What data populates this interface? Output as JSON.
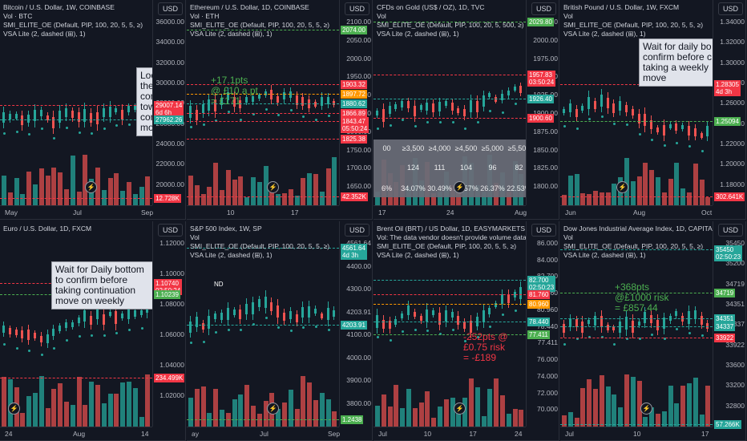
{
  "colors": {
    "bg": "#131722",
    "green": "#26a69a",
    "red": "#ef5350",
    "orange": "#ff9800",
    "greenLine": "#4caf50",
    "redLine": "#f23645"
  },
  "panes": [
    {
      "id": "btc",
      "title": "Bitcoin / U.S. Dollar, 1W, COINBASE",
      "legend2": "Vol · BTC",
      "legend3": "SMI_ELITE_OE (Default, PIP, 100, 20, 5, 5, ≥)",
      "legend4": "VSA Lite (2, dashed (⊞), 1)",
      "usd": "USD",
      "yticks": [
        "36000.00",
        "34000.00",
        "32000.00",
        "30000.00",
        "28000.00",
        "26000.00",
        "24000.00",
        "22000.00",
        "20000.00"
      ],
      "xticks": [
        "May",
        "Jul",
        "Sep"
      ],
      "labels": [
        {
          "t": "29007.14",
          "sub": "6d 6h"
        },
        {
          "t": "27962.26"
        },
        {
          "t": "12.728K"
        }
      ],
      "note": "Loo the con tow con mov"
    },
    {
      "id": "eth",
      "title": "Ethereum / U.S. Dollar, 1D, COINBASE",
      "legend2": "Vol · ETH",
      "legend3": "SMI_ELITE_OE (Default, PIP, 100, 20, 5, 5, ≥)",
      "legend4": "VSA Lite (2, dashed (⊞), 1)",
      "usd": "USD",
      "yticks": [
        "2100.00",
        "2050.00",
        "2000.00",
        "1950.00",
        "1900.00",
        "1850.00",
        "1800.00",
        "1750.00",
        "1700.00",
        "1650.00"
      ],
      "xticks": [
        "10",
        "17"
      ],
      "labels": [
        {
          "t": "2074.00"
        },
        {
          "t": "1903.32"
        },
        {
          "t": "1897.72"
        },
        {
          "t": "1880.62"
        },
        {
          "t": "1866.89"
        },
        {
          "t": "1843.47",
          "sub": "05:50:24"
        },
        {
          "t": "1825.38"
        },
        {
          "t": "42.352K"
        }
      ],
      "pnl": "+17.1pts\n@ £10 a pt\n= £171"
    },
    {
      "id": "gold",
      "title": "CFDs on Gold (US$ / OZ), 1D, TVC",
      "legend2": "Vol",
      "legend3": "SMI_ELITE_OE (Default, PIP, 100, 20, 5, 500, ≥)",
      "legend4": "VSA Lite (2, dashed (⊞), 1)",
      "usd": "USD",
      "yticks": [
        "2029.80",
        "2000.00",
        "1975.00",
        "1950.00",
        "1925.00",
        "1900.00",
        "1875.00",
        "1850.00",
        "1825.00",
        "1800.00"
      ],
      "xticks": [
        "17",
        "24",
        "Aug"
      ],
      "labels": [
        {
          "t": "2029.80"
        },
        {
          "t": "1957.83",
          "sub": "03:50:24"
        },
        {
          "t": "1926.40"
        },
        {
          "t": "1900.60"
        }
      ],
      "table": {
        "head": [
          "00",
          "≥3,500",
          "≥4,000",
          "≥4,500",
          "≥5,000",
          "≥5,500",
          "≥6,"
        ],
        "row1": [
          "",
          "124",
          "111",
          "104",
          "96",
          "82",
          "7"
        ],
        "row2": [
          "6%",
          "34.07%",
          "30.49%",
          "28.57%",
          "26.37%",
          "22.53%",
          "20."
        ]
      }
    },
    {
      "id": "gbp",
      "title": "British Pound / U.S. Dollar, 1W, FXCM",
      "legend2": "Vol",
      "legend3": "SMI_ELITE_OE (Default, PIP, 100, 20, 5, 5, ≥)",
      "legend4": "VSA Lite (2, dashed (⊞), 1)",
      "usd": "USD",
      "yticks": [
        "1.34000",
        "1.32000",
        "1.30000",
        "1.28000",
        "1.26000",
        "1.24000",
        "1.22000",
        "1.20000",
        "1.18000"
      ],
      "xticks": [
        "Jun",
        "Aug",
        "Oct"
      ],
      "labels": [
        {
          "t": "1.28305",
          "sub": "4d 3h"
        },
        {
          "t": "1.25094"
        },
        {
          "t": "302.641K"
        }
      ],
      "note": "Wait for daily bo confirm before c taking a weekly move"
    },
    {
      "id": "eur",
      "title": "Euro / U.S. Dollar, 1D, FXCM",
      "legend2": "",
      "legend3": "",
      "legend4": "",
      "usd": "USD",
      "yticks": [
        "1.12000",
        "1.10000",
        "1.08000",
        "1.06000",
        "1.04000",
        "1.02000"
      ],
      "xticks": [
        "24",
        "Aug",
        "14"
      ],
      "labels": [
        {
          "t": "1.10740",
          "sub": "02:50:24"
        },
        {
          "t": "1.10239"
        },
        {
          "t": "234.499K"
        }
      ],
      "note": "Wait for Daily bottom to confirm before taking continuation move on weekly"
    },
    {
      "id": "spx",
      "title": "S&P 500 Index, 1W, SP",
      "legend2": "Vol",
      "legend3": "SMI_ELITE_OE (Default, PIP, 100, 20, 5, 5, ≥)",
      "legend4": "VSA Lite (2, dashed (⊞), 1)",
      "usd": "USD",
      "yticks": [
        "4561.64",
        "4400.00",
        "4300.00",
        "4203.91",
        "4100.00",
        "4000.00",
        "3900.00",
        "3800.00"
      ],
      "xticks": [
        "ay",
        "Jul",
        "Sep"
      ],
      "labels": [
        {
          "t": "4561.64",
          "sub": "4d 3h"
        },
        {
          "t": "4203.91"
        },
        {
          "t": "1.2438"
        }
      ],
      "nd": "ND"
    },
    {
      "id": "brent",
      "title": "Brent Oil (BRT) / US Dollar, 1D, EASYMARKETS",
      "legend2": "Vol: The data vendor doesn't provide volume data for this",
      "legend3": "SMI_ELITE_OE (Default, PIP, 100, 20, 5, 5, ≥)",
      "legend4": "VSA Lite (2, dashed (⊞), 1)",
      "usd": "USD",
      "yticks": [
        "86.000",
        "84.000",
        "82.700",
        "81.760",
        "80.960",
        "78.440",
        "77.411",
        "76.000",
        "74.000",
        "72.000",
        "70.000"
      ],
      "xticks": [
        "Jul",
        "10",
        "17",
        "24"
      ],
      "labels": [
        {
          "t": "82.700",
          "sub": "02:50:23"
        },
        {
          "t": "81.760"
        },
        {
          "t": "80.960"
        },
        {
          "t": "78.440"
        },
        {
          "t": "77.411"
        }
      ],
      "pnl": "-252pts @\n£0.75 risk\n= -£189"
    },
    {
      "id": "dji",
      "title": "Dow Jones Industrial Average Index, 1D, CAPITALCOM",
      "legend2": "Vol",
      "legend3": "SMI_ELITE_OE (Default, PIP, 100, 20, 5, 5, ≥)",
      "legend4": "VSA Lite (2, dashed (⊞), 1)",
      "usd": "USD",
      "yticks": [
        "35450",
        "35200",
        "34719",
        "34351",
        "34337",
        "33922",
        "33600",
        "33200",
        "32800"
      ],
      "xticks": [
        "Jul",
        "10",
        "17"
      ],
      "labels": [
        {
          "t": "35450",
          "sub": "02:50:23"
        },
        {
          "t": "34719"
        },
        {
          "t": "34351"
        },
        {
          "t": "34337"
        },
        {
          "t": "33922"
        },
        {
          "t": "57.266K"
        }
      ],
      "pnl": "+368pts\n@£1000 risk\n= £857.44"
    }
  ]
}
